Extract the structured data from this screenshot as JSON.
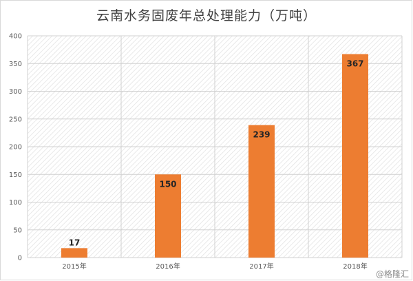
{
  "chart_data": {
    "type": "bar",
    "title": "云南水务固废年总处理能力（万吨）",
    "categories": [
      "2015年",
      "2016年",
      "2017年",
      "2018年"
    ],
    "values": [
      17,
      150,
      239,
      367
    ],
    "ylim": [
      0,
      400
    ],
    "yticks": [
      0,
      50,
      100,
      150,
      200,
      250,
      300,
      350,
      400
    ],
    "xlabel": "",
    "ylabel": "",
    "grid": true,
    "legend": "none",
    "bar_color": "#ED7D31"
  },
  "watermark": "@格隆汇"
}
